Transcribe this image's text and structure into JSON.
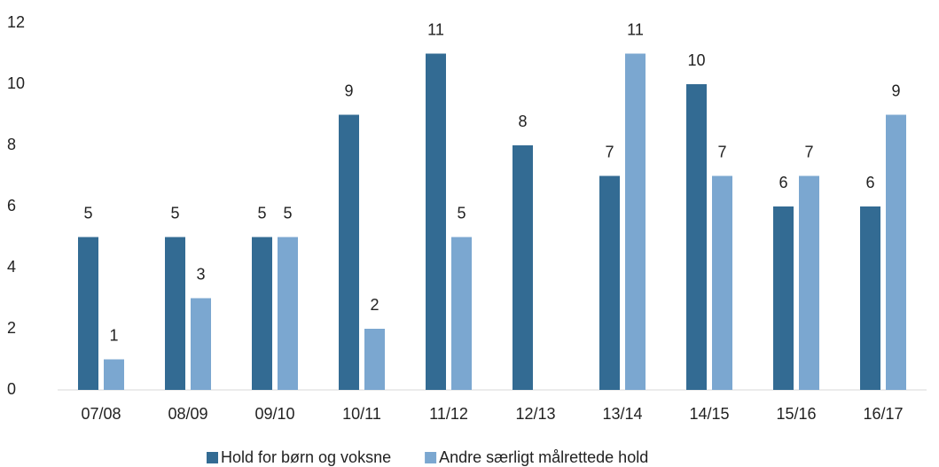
{
  "chart_data": {
    "type": "bar",
    "categories": [
      "07/08",
      "08/09",
      "09/10",
      "10/11",
      "11/12",
      "12/13",
      "13/14",
      "14/15",
      "15/16",
      "16/17"
    ],
    "series": [
      {
        "name": "Hold for børn og voksne",
        "color": "#336b93",
        "values": [
          5,
          5,
          5,
          9,
          11,
          8,
          7,
          10,
          6,
          6
        ]
      },
      {
        "name": "Andre særligt målrettede hold",
        "color": "#7ba7d0",
        "values": [
          1,
          3,
          5,
          2,
          5,
          null,
          11,
          7,
          7,
          9
        ]
      }
    ],
    "ylim": [
      0,
      12
    ],
    "yticks": [
      0,
      2,
      4,
      6,
      8,
      10,
      12
    ],
    "grid": false,
    "legend": "bottom"
  }
}
